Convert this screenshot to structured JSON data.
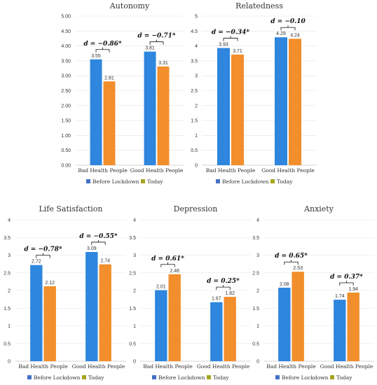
{
  "colors": {
    "before": "#2E86DE",
    "today": "#F28E2B",
    "legend_before": "#4472C4",
    "legend_today": "#A5A520"
  },
  "legend": {
    "before": "Before Lockdown",
    "today": "Today"
  },
  "chart_data": [
    {
      "type": "bar",
      "title": "Autonomy",
      "categories": [
        "Bad Health People",
        "Good Health People"
      ],
      "series": [
        {
          "name": "Before Lockdown",
          "values": [
            3.55,
            3.81
          ]
        },
        {
          "name": "Today",
          "values": [
            2.81,
            3.31
          ]
        }
      ],
      "value_labels": [
        [
          "3.55",
          "2.81"
        ],
        [
          "3.81",
          "3.31"
        ]
      ],
      "effects": [
        "d = −0.86*",
        "d = −0.71*"
      ],
      "ylim": [
        0,
        5
      ],
      "ticks": [
        "0.00",
        "0.50",
        "1.00",
        "1.50",
        "2.00",
        "2.50",
        "3.00",
        "3.50",
        "4.00",
        "4.50",
        "5.00"
      ],
      "grid": true,
      "legend": "bottom"
    },
    {
      "type": "bar",
      "title": "Relatedness",
      "categories": [
        "Bad Health People",
        "Good Health People"
      ],
      "series": [
        {
          "name": "Before Lockdown",
          "values": [
            3.93,
            4.29
          ]
        },
        {
          "name": "Today",
          "values": [
            3.71,
            4.24
          ]
        }
      ],
      "value_labels": [
        [
          "3.93",
          "3.71"
        ],
        [
          "4.29",
          "4.24"
        ]
      ],
      "effects": [
        "d = −0.34*",
        "d = −0.10"
      ],
      "ylim": [
        0,
        5
      ],
      "ticks": [
        "0",
        "0.5",
        "1",
        "1.5",
        "2",
        "2.5",
        "3",
        "3.5",
        "4",
        "4.5",
        "5"
      ],
      "grid": true,
      "legend": "bottom"
    },
    {
      "type": "bar",
      "title": "Life Satisfaction",
      "categories": [
        "Bad Health People",
        "Good Health People"
      ],
      "series": [
        {
          "name": "Before Lockdown",
          "values": [
            2.72,
            3.09
          ]
        },
        {
          "name": "Today",
          "values": [
            2.12,
            2.74
          ]
        }
      ],
      "value_labels": [
        [
          "2.72",
          "2.12"
        ],
        [
          "3.09",
          "2.74"
        ]
      ],
      "effects": [
        "d = −0.78*",
        "d = −0.55*"
      ],
      "ylim": [
        0,
        4
      ],
      "ticks": [
        "0",
        "0.5",
        "1",
        "1.5",
        "2",
        "2.5",
        "3",
        "3.5",
        "4"
      ],
      "grid": true,
      "legend": "bottom"
    },
    {
      "type": "bar",
      "title": "Depression",
      "categories": [
        "Bad Health People",
        "Good Health People"
      ],
      "series": [
        {
          "name": "Before Lockdown",
          "values": [
            2.01,
            1.67
          ]
        },
        {
          "name": "Today",
          "values": [
            2.46,
            1.82
          ]
        }
      ],
      "value_labels": [
        [
          "2.01",
          "2.46"
        ],
        [
          "1.67",
          "1.82"
        ]
      ],
      "effects": [
        "d = 0.61*",
        "d = 0.25*"
      ],
      "ylim": [
        0,
        4
      ],
      "ticks": [
        "0",
        "0.5",
        "1",
        "1.5",
        "2",
        "2.5",
        "3",
        "3.5",
        "4"
      ],
      "grid": true,
      "legend": "bottom"
    },
    {
      "type": "bar",
      "title": "Anxiety",
      "categories": [
        "Bad Health People",
        "Good Health People"
      ],
      "series": [
        {
          "name": "Before Lockdown",
          "values": [
            2.08,
            1.74
          ]
        },
        {
          "name": "Today",
          "values": [
            2.53,
            1.94
          ]
        }
      ],
      "value_labels": [
        [
          "2.08",
          "2.53"
        ],
        [
          "1.74",
          "1.94"
        ]
      ],
      "effects": [
        "d = 0.65*",
        "d = 0.37*"
      ],
      "ylim": [
        0,
        4
      ],
      "ticks": [
        "0",
        "0.5",
        "1",
        "1.5",
        "2",
        "2.5",
        "3",
        "3.5",
        "4"
      ],
      "grid": true,
      "legend": "bottom"
    }
  ]
}
